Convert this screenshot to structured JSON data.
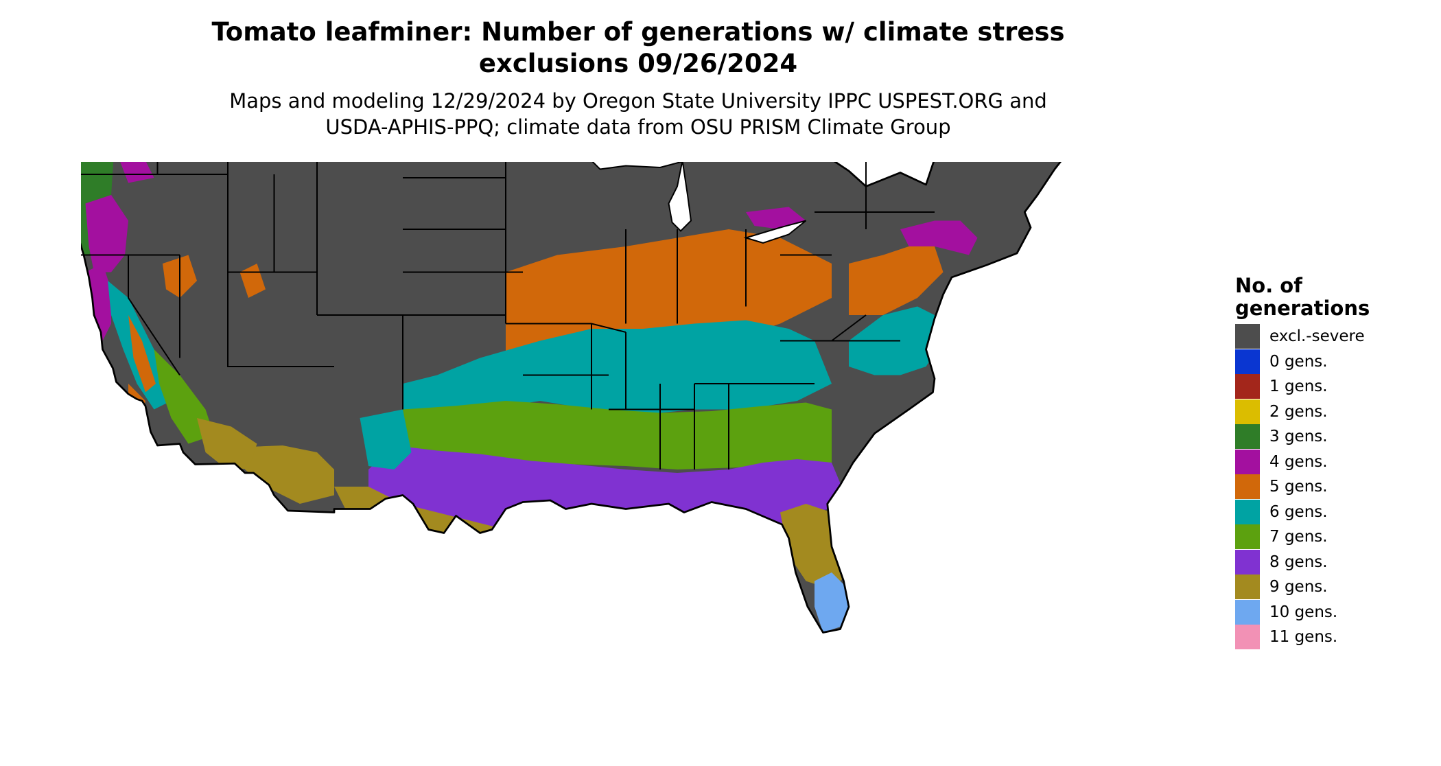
{
  "title": "Tomato leafminer: Number of generations w/ climate stress\nexclusions 09/26/2024",
  "subtitle": "Maps and modeling 12/29/2024 by Oregon State University IPPC USPEST.ORG and\nUSDA-APHIS-PPQ; climate data from OSU PRISM Climate Group",
  "legend": {
    "title": "No. of\ngenerations",
    "items": [
      {
        "label": "excl.-severe",
        "color": "#4d4d4d"
      },
      {
        "label": "0 gens.",
        "color": "#0a36d1"
      },
      {
        "label": "1 gens.",
        "color": "#a3261b"
      },
      {
        "label": "2 gens.",
        "color": "#dbbd00"
      },
      {
        "label": "3 gens.",
        "color": "#2f7d28"
      },
      {
        "label": "4 gens.",
        "color": "#a3109f"
      },
      {
        "label": "5 gens.",
        "color": "#d1680a"
      },
      {
        "label": "6 gens.",
        "color": "#00a3a3"
      },
      {
        "label": "7 gens.",
        "color": "#5ca10f"
      },
      {
        "label": "8 gens.",
        "color": "#8032d1"
      },
      {
        "label": "9 gens.",
        "color": "#a38a1f"
      },
      {
        "label": "10 gens.",
        "color": "#6ea8f0"
      },
      {
        "label": "11 gens.",
        "color": "#f291b5"
      }
    ]
  },
  "map": {
    "region": "contiguous-united-states",
    "layer": "generations-raster",
    "boundary_color": "#000000"
  }
}
